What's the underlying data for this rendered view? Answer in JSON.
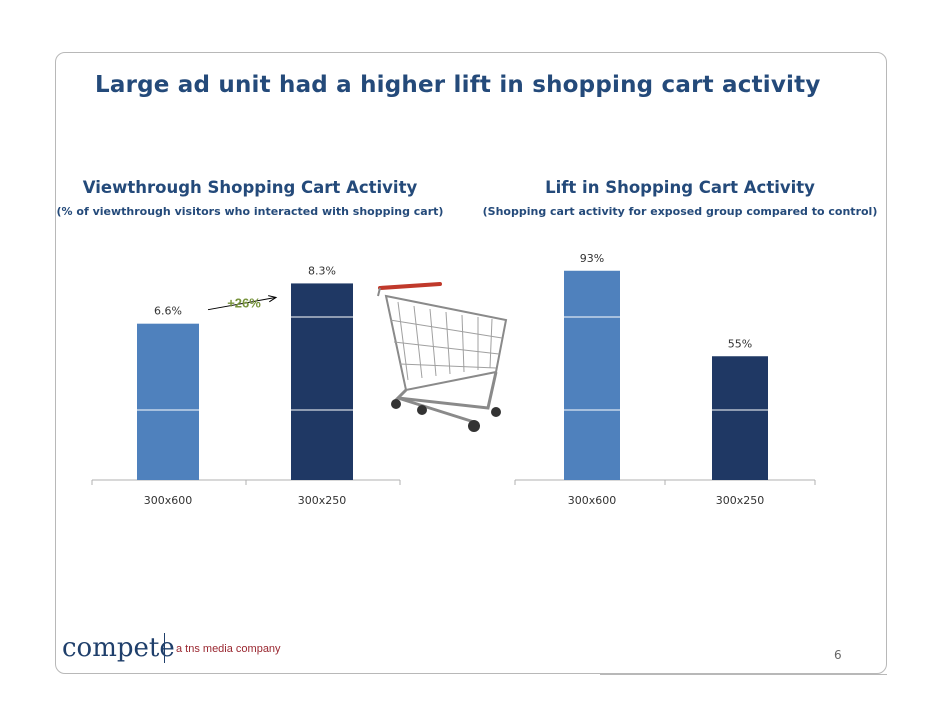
{
  "slide": {
    "title": "Large ad unit had a higher lift in shopping cart activity",
    "page_number": "6"
  },
  "footer": {
    "brand": "compete",
    "tagline": "a tns media company"
  },
  "chart_data": [
    {
      "type": "bar",
      "title": "Viewthrough Shopping Cart Activity",
      "subtitle": "(% of viewthrough visitors who interacted with shopping cart)",
      "categories": [
        "300x600",
        "300x250"
      ],
      "values": [
        6.6,
        8.3
      ],
      "data_labels": [
        "6.6%",
        "8.3%"
      ],
      "colors": [
        "#4f81bd",
        "#1f3864"
      ],
      "ylim": [
        0,
        9.5
      ],
      "annotation": "+26%",
      "annotation_color": "#77933c",
      "grid": true
    },
    {
      "type": "bar",
      "title": "Lift in Shopping Cart Activity",
      "subtitle": "(Shopping cart activity for exposed group compared to control)",
      "categories": [
        "300x600",
        "300x250"
      ],
      "values": [
        93,
        55
      ],
      "data_labels": [
        "93%",
        "55%"
      ],
      "colors": [
        "#4f81bd",
        "#1f3864"
      ],
      "ylim": [
        0,
        100
      ],
      "grid": true
    }
  ],
  "image": {
    "icon": "shopping-cart-icon"
  }
}
